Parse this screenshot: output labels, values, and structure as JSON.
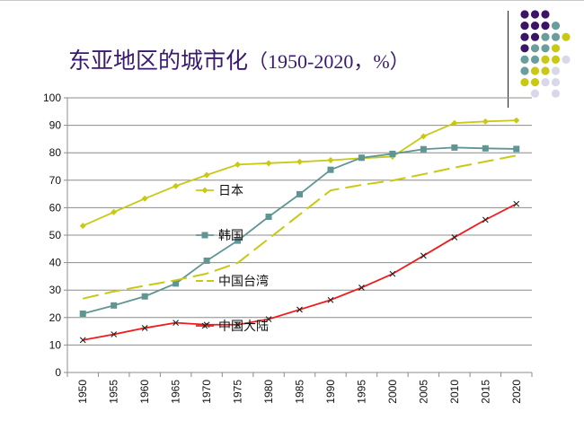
{
  "title": {
    "main": "东亚地区的城市化",
    "paren": "（1950-2020，%）"
  },
  "decoration": {
    "dot_colors": {
      "P": "#3b1466",
      "T": "#6a9e9c",
      "Y": "#c9c914",
      "L": "#d8d8ea"
    },
    "dot_grid": [
      "PPP..",
      "PPPT.",
      "PPTTY",
      "PTTY.",
      "TTYYL",
      "TYYL.",
      "YYLL.",
      ".L.L."
    ]
  },
  "chart_data": {
    "type": "line",
    "title": "东亚地区的城市化（1950-2020，%）",
    "xlabel": "",
    "ylabel": "",
    "ylim": [
      0,
      100
    ],
    "yticks": [
      0,
      10,
      20,
      30,
      40,
      50,
      60,
      70,
      80,
      90,
      100
    ],
    "grid": true,
    "categories": [
      "1950",
      "1955",
      "1960",
      "1965",
      "1970",
      "1975",
      "1980",
      "1985",
      "1990",
      "1995",
      "2000",
      "2005",
      "2010",
      "2015",
      "2020"
    ],
    "series": [
      {
        "name": "日本",
        "color": "#c9c914",
        "style": "solid",
        "marker": "diamond",
        "values": [
          53.4,
          58.4,
          63.3,
          67.9,
          71.9,
          75.7,
          76.2,
          76.7,
          77.3,
          78.0,
          78.6,
          86.0,
          90.8,
          91.4,
          91.8
        ]
      },
      {
        "name": "韩国",
        "color": "#5f9593",
        "style": "solid",
        "marker": "square",
        "values": [
          21.4,
          24.4,
          27.7,
          32.4,
          40.7,
          48.0,
          56.7,
          64.9,
          73.8,
          78.2,
          79.6,
          81.3,
          81.9,
          81.6,
          81.4
        ]
      },
      {
        "name": "中国台湾",
        "color": "#c9c914",
        "style": "dashed",
        "marker": "none",
        "values": [
          26.9,
          29.5,
          31.6,
          33.6,
          36.0,
          39.9,
          48.7,
          57.5,
          66.3,
          68.3,
          69.9,
          72.2,
          74.6,
          76.8,
          79.0
        ]
      },
      {
        "name": "中国大陆",
        "color": "#ee1c1c",
        "style": "solid",
        "marker": "x",
        "values": [
          11.8,
          13.9,
          16.2,
          18.1,
          17.4,
          17.4,
          19.4,
          22.9,
          26.4,
          30.9,
          35.9,
          42.5,
          49.2,
          55.6,
          61.4
        ]
      }
    ],
    "legend_placement": "inline"
  }
}
